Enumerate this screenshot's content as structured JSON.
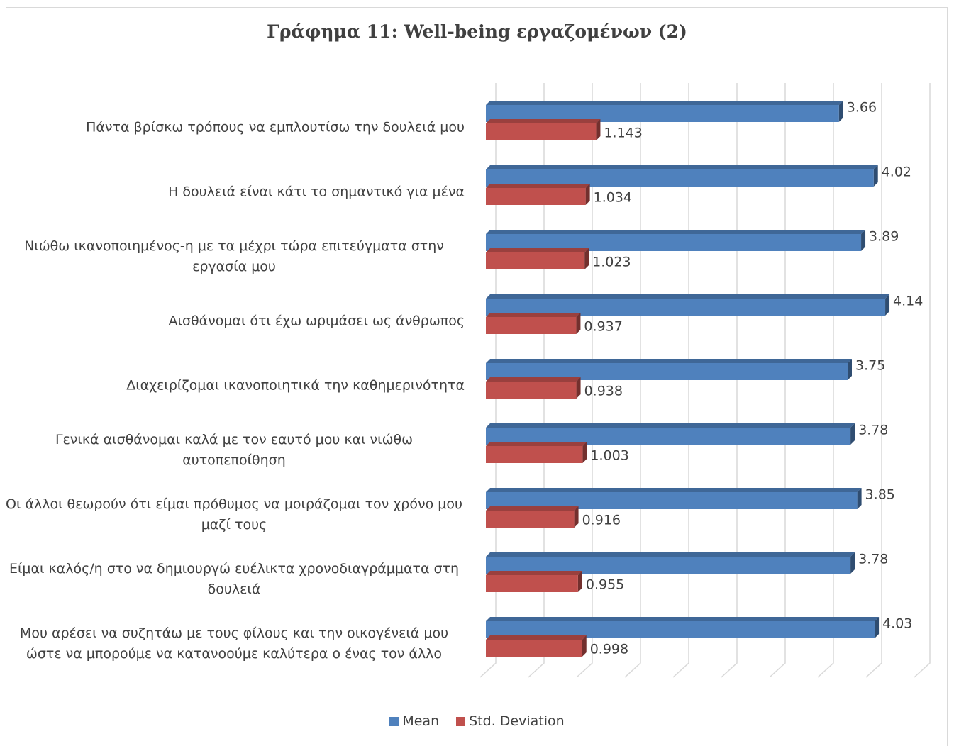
{
  "chart_data": {
    "type": "bar",
    "orientation": "horizontal",
    "title": "Γράφημα 11: Well-being εργαζομένων (2)",
    "categories": [
      "Πάντα βρίσκω τρόπους να εμπλουτίσω την δουλειά μου",
      "Η δουλειά είναι κάτι το σημαντικό για μένα",
      "Νιώθω  ικανοποιημένος-η  με τα μέχρι τώρα επιτεύγματα στην εργασία μου",
      "Αισθάνομαι ότι έχω ωριμάσει ως άνθρωπος",
      "Διαχειρίζομαι ικανοποιητικά την καθημερινότητα",
      "Γενικά αισθάνομαι καλά με τον εαυτό μου και νιώθω αυτοπεποίθηση",
      "Οι άλλοι θεωρούν ότι είμαι πρόθυμος να μοιράζομαι τον χρόνο μου μαζί τους",
      "Είμαι καλός/η στο να δημιουργώ ευέλικτα χρονοδιαγράμματα στη δουλειά",
      "Μου αρέσει να συζητάω με τους φίλους και την οικογένειά μου ώστε να μπορούμε να κατανοούμε καλύτερα ο ένας τον άλλο"
    ],
    "series": [
      {
        "name": "Mean",
        "color": "#4f81bd",
        "values": [
          3.66,
          4.02,
          3.89,
          4.14,
          3.75,
          3.78,
          3.85,
          3.78,
          4.03
        ]
      },
      {
        "name": "Std. Deviation",
        "color": "#c0504d",
        "values": [
          1.143,
          1.034,
          1.023,
          0.937,
          0.938,
          1.003,
          0.916,
          0.955,
          0.998
        ]
      }
    ],
    "xlim": [
      0,
      4.5
    ],
    "xticks": [
      0,
      0.5,
      1,
      1.5,
      2,
      2.5,
      3,
      3.5,
      4,
      4.5
    ],
    "grid": true,
    "legend": "bottom"
  }
}
